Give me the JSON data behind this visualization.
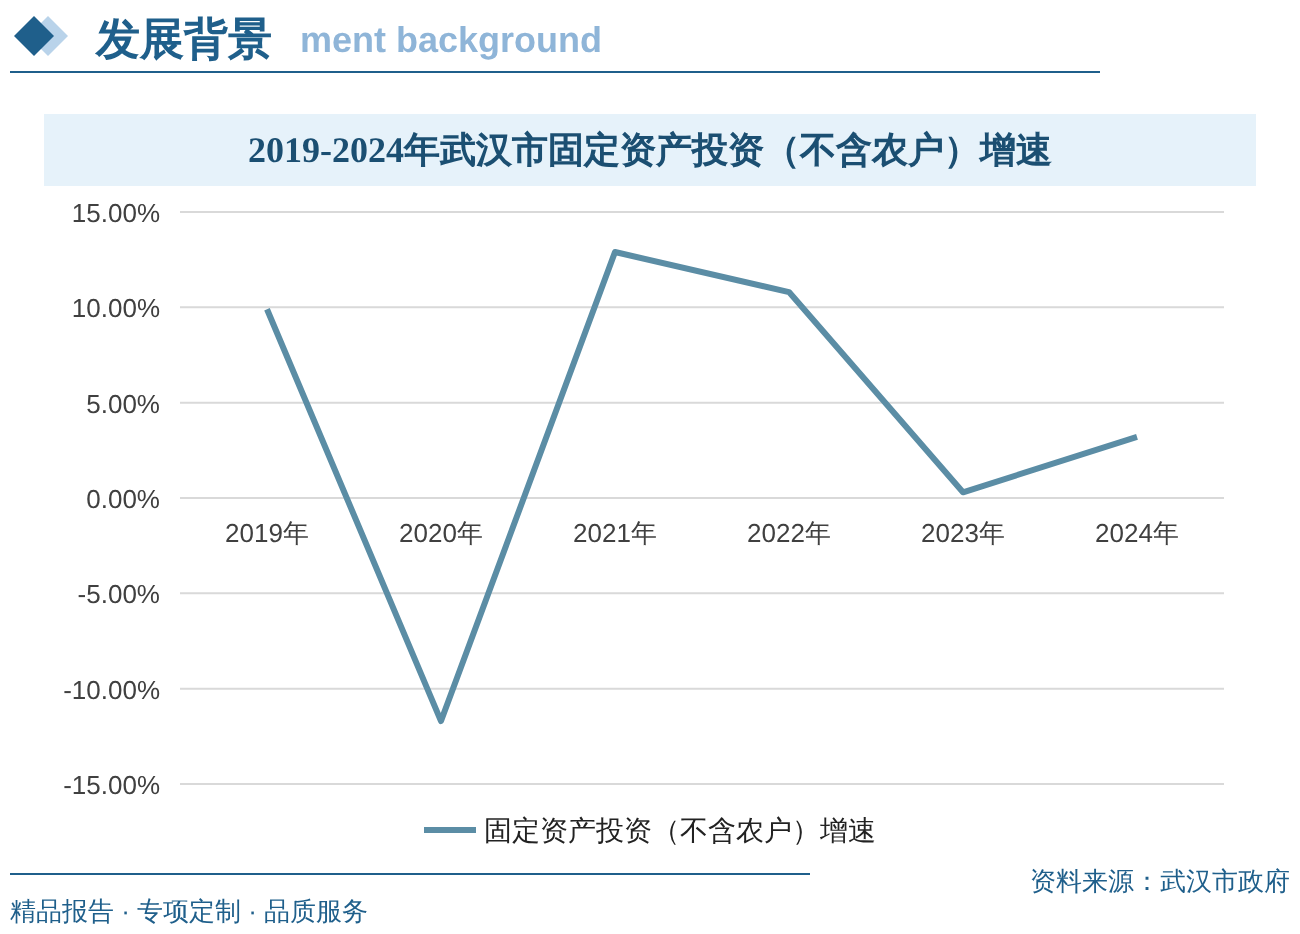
{
  "chart_data": {
    "type": "line",
    "title": "2019-2024年武汉市固定资产投资（不含农户）增速",
    "categories": [
      "2019年",
      "2020年",
      "2021年",
      "2022年",
      "2023年",
      "2024年"
    ],
    "series": [
      {
        "name": "固定资产投资（不含农户）增速",
        "color": "#5b8da5",
        "values": [
          9.9,
          -11.7,
          12.9,
          10.8,
          0.3,
          3.2
        ]
      }
    ],
    "ylim": [
      -15,
      15
    ],
    "yticks": [
      {
        "value": -15,
        "label": "-15.00%"
      },
      {
        "value": -10,
        "label": "-10.00%"
      },
      {
        "value": -5,
        "label": "-5.00%"
      },
      {
        "value": 0,
        "label": "0.00%"
      },
      {
        "value": 5,
        "label": "5.00%"
      },
      {
        "value": 10,
        "label": "10.00%"
      },
      {
        "value": 15,
        "label": "15.00%"
      }
    ],
    "grid": "y",
    "legend": "bottom",
    "line_style": "solid",
    "annotations": [
      "发展背景",
      "ment background",
      "资料来源：武汉市政府",
      "精品报告 · 专项定制 · 品质服务"
    ]
  }
}
